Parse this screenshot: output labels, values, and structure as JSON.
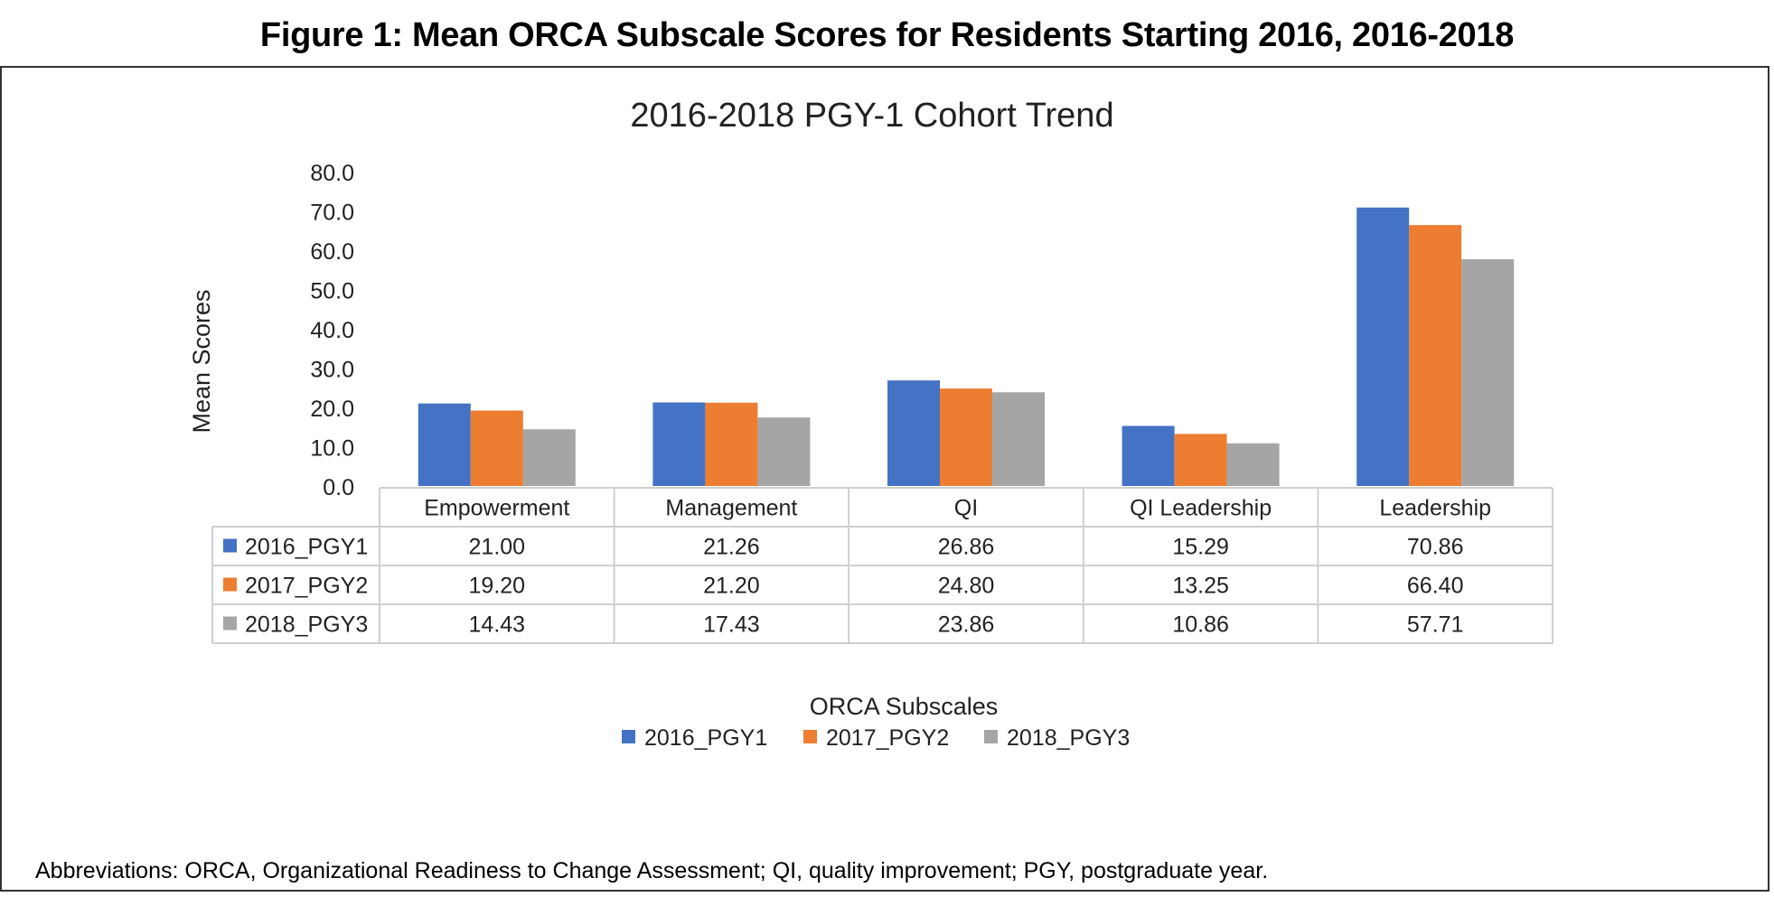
{
  "figure": {
    "caption": "Figure 1: Mean ORCA Subscale Scores for Residents Starting 2016, 2016-2018",
    "footnote": "Abbreviations: ORCA, Organizational Readiness to Change Assessment; QI, quality improvement; PGY, postgraduate year."
  },
  "chart_data": {
    "type": "bar",
    "title": "2016-2018 PGY-1 Cohort Trend",
    "xlabel": "ORCA Subscales",
    "ylabel": "Mean Scores",
    "ylim": [
      0,
      80
    ],
    "yticks": [
      "0.0",
      "10.0",
      "20.0",
      "30.0",
      "40.0",
      "50.0",
      "60.0",
      "70.0",
      "80.0"
    ],
    "categories": [
      "Empowerment",
      "Management",
      "QI",
      "QI Leadership",
      "Leadership"
    ],
    "series": [
      {
        "name": "2016_PGY1",
        "color": "#4472C4",
        "values": [
          21.0,
          21.26,
          26.86,
          15.29,
          70.86
        ],
        "labels": [
          "21.00",
          "21.26",
          "26.86",
          "15.29",
          "70.86"
        ]
      },
      {
        "name": "2017_PGY2",
        "color": "#ED7D31",
        "values": [
          19.2,
          21.2,
          24.8,
          13.25,
          66.4
        ],
        "labels": [
          "19.20",
          "21.20",
          "24.80",
          "13.25",
          "66.40"
        ]
      },
      {
        "name": "2018_PGY3",
        "color": "#A5A5A5",
        "values": [
          14.43,
          17.43,
          23.86,
          10.86,
          57.71
        ],
        "labels": [
          "14.43",
          "17.43",
          "23.86",
          "10.86",
          "57.71"
        ]
      }
    ],
    "grid": false,
    "legend": "bottom",
    "data_table": true
  }
}
